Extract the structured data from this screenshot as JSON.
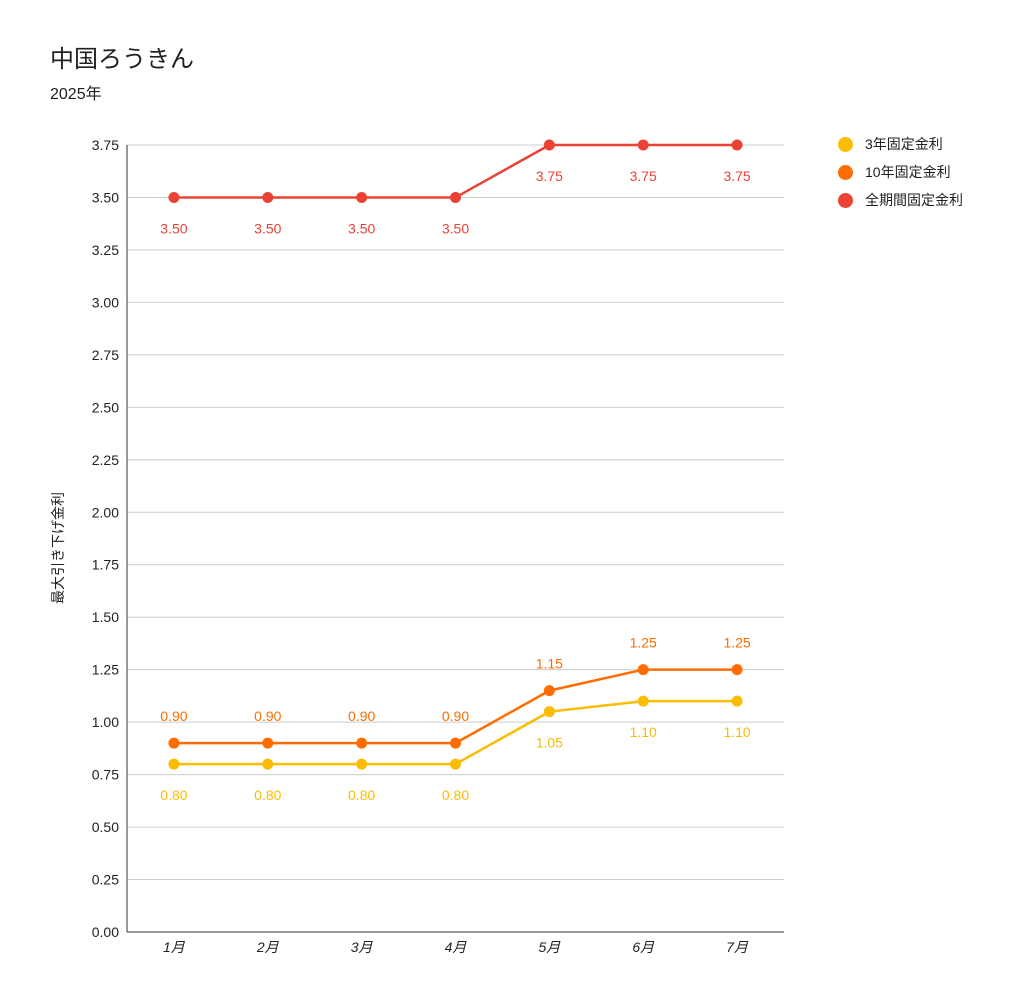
{
  "header": {
    "title": "中国ろうきん",
    "subtitle": "2025年"
  },
  "legend": {
    "items": [
      {
        "label": "3年固定金利",
        "color": "#FBBC04"
      },
      {
        "label": "10年固定金利",
        "color": "#FF6D01"
      },
      {
        "label": "全期間固定金利",
        "color": "#EA4335"
      }
    ]
  },
  "chart_data": {
    "type": "line",
    "title": "中国ろうきん",
    "subtitle": "2025年",
    "xlabel": "",
    "ylabel": "最大引き下げ金利",
    "categories": [
      "1月",
      "2月",
      "3月",
      "4月",
      "5月",
      "6月",
      "7月"
    ],
    "ylim": [
      0,
      3.75
    ],
    "yticks": [
      "0.00",
      "0.25",
      "0.50",
      "0.75",
      "1.00",
      "1.25",
      "1.50",
      "1.75",
      "2.00",
      "2.25",
      "2.50",
      "2.75",
      "3.00",
      "3.25",
      "3.50",
      "3.75"
    ],
    "grid": true,
    "legend_position": "right",
    "series": [
      {
        "name": "3年固定金利",
        "color": "#FBBC04",
        "values": [
          0.8,
          0.8,
          0.8,
          0.8,
          1.05,
          1.1,
          1.1
        ],
        "labels": [
          "0.80",
          "0.80",
          "0.80",
          "0.80",
          "1.05",
          "1.10",
          "1.10"
        ],
        "label_placement": [
          "below",
          "below",
          "below",
          "below",
          "below",
          "below",
          "below"
        ]
      },
      {
        "name": "10年固定金利",
        "color": "#FF6D01",
        "values": [
          0.9,
          0.9,
          0.9,
          0.9,
          1.15,
          1.25,
          1.25
        ],
        "labels": [
          "0.90",
          "0.90",
          "0.90",
          "0.90",
          "1.15",
          "1.25",
          "1.25"
        ],
        "label_placement": [
          "above",
          "above",
          "above",
          "above",
          "above",
          "above",
          "above"
        ]
      },
      {
        "name": "全期間固定金利",
        "color": "#EA4335",
        "values": [
          3.5,
          3.5,
          3.5,
          3.5,
          3.75,
          3.75,
          3.75
        ],
        "labels": [
          "3.50",
          "3.50",
          "3.50",
          "3.50",
          "3.75",
          "3.75",
          "3.75"
        ],
        "label_placement": [
          "below",
          "below",
          "below",
          "below",
          "below",
          "below",
          "below"
        ]
      }
    ]
  }
}
